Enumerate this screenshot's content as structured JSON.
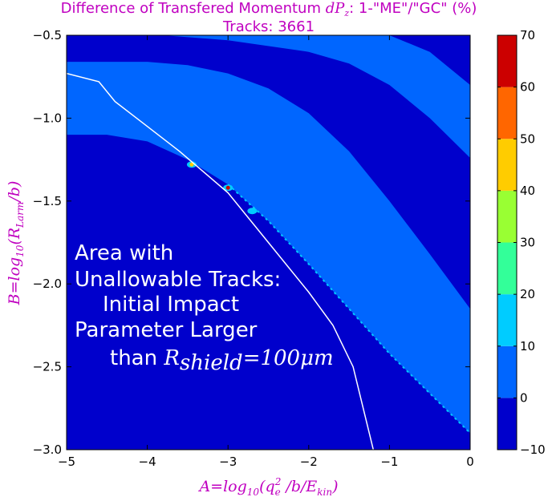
{
  "chart_data": {
    "type": "heatmap",
    "title": "Difference of Transfered Momentum $dP_z$: 1-\"ME\"/\"GC\" (%)",
    "title_line1_text": "Difference of Transfered Momentum ",
    "title_line1_math": "dP",
    "title_line1_math_sub": "z",
    "title_line1_tail": ": 1-\"ME\"/\"GC\" (%)",
    "subtitle": "Tracks: 3661",
    "xlabel": "A=log10(qe^2/b/Ekin)",
    "xlabel_parts": {
      "main": "A=log",
      "sub1": "10",
      "open": "(q",
      "sub2": "e",
      "sup2": "2",
      "rest": " /b/E",
      "sub3": "kin",
      "close": ")"
    },
    "ylabel": "B=log10(RLarm/b)",
    "ylabel_parts": {
      "main": "B=log",
      "sub1": "10",
      "open": "(R",
      "sub2": "Larm",
      "close": "/b)"
    },
    "xlim": [
      -5,
      0
    ],
    "ylim": [
      -3,
      -0.5
    ],
    "x_ticks": [
      -5,
      -4,
      -3,
      -2,
      -1,
      0
    ],
    "x_tick_labels": [
      "−5",
      "−4",
      "−3",
      "−2",
      "−1",
      "0"
    ],
    "y_ticks": [
      -0.5,
      -1.0,
      -1.5,
      -2.0,
      -2.5,
      -3.0
    ],
    "y_tick_labels": [
      "−0.5",
      "−1.0",
      "−1.5",
      "−2.0",
      "−2.5",
      "−3.0"
    ],
    "colorbar": {
      "levels": [
        -10,
        0,
        10,
        20,
        30,
        40,
        50,
        60,
        70
      ],
      "labels": [
        "−10",
        "0",
        "10",
        "20",
        "30",
        "40",
        "50",
        "60",
        "70"
      ],
      "colors": [
        "#0000cc",
        "#0066ff",
        "#00ccff",
        "#33ff99",
        "#99ff33",
        "#ffcc00",
        "#ff6600",
        "#cc0000"
      ]
    },
    "regions": {
      "background_level": "#0000cc",
      "upper_band": {
        "color": "#0066ff",
        "lower_edge": [
          [
            -5,
            -1.1
          ],
          [
            -4.5,
            -1.1
          ],
          [
            -4.0,
            -1.14
          ],
          [
            -3.5,
            -1.25
          ],
          [
            -3.0,
            -1.4
          ],
          [
            -2.5,
            -1.62
          ],
          [
            -2.0,
            -1.88
          ],
          [
            -1.5,
            -2.15
          ],
          [
            -1.0,
            -2.42
          ],
          [
            -0.5,
            -2.66
          ],
          [
            0,
            -2.9
          ]
        ],
        "upper_edge": [
          [
            -5,
            -0.66
          ],
          [
            -4,
            -0.66
          ],
          [
            -3.5,
            -0.68
          ],
          [
            -3.0,
            -0.73
          ],
          [
            -2.5,
            -0.82
          ],
          [
            -2.0,
            -0.97
          ],
          [
            -1.5,
            -1.2
          ],
          [
            -1.0,
            -1.5
          ],
          [
            -0.5,
            -1.82
          ],
          [
            0,
            -2.15
          ]
        ]
      },
      "top_band": {
        "color": "#0066ff",
        "lower_edge": [
          [
            -3.8,
            -0.5
          ],
          [
            -3.0,
            -0.53
          ],
          [
            -2.0,
            -0.6
          ],
          [
            -1.5,
            -0.67
          ],
          [
            -1.0,
            -0.8
          ],
          [
            -0.5,
            -1.0
          ],
          [
            0,
            -1.24
          ]
        ],
        "upper_edge": [
          [
            -1.0,
            -0.5
          ],
          [
            -0.5,
            -0.6
          ],
          [
            0,
            -0.8
          ]
        ]
      }
    },
    "hot_spots": [
      {
        "x": -3.0,
        "y": -1.42,
        "value": 65
      },
      {
        "x": -3.45,
        "y": -1.28,
        "value": 45
      },
      {
        "x": -2.7,
        "y": -1.56,
        "value": 15
      }
    ],
    "boundary_curve": [
      [
        -5,
        -0.73
      ],
      [
        -4.6,
        -0.78
      ],
      [
        -4.4,
        -0.9
      ],
      [
        -4.0,
        -1.05
      ],
      [
        -3.6,
        -1.2
      ],
      [
        -3.0,
        -1.45
      ],
      [
        -2.5,
        -1.75
      ],
      [
        -2.0,
        -2.05
      ],
      [
        -1.7,
        -2.25
      ],
      [
        -1.45,
        -2.5
      ],
      [
        -1.3,
        -2.8
      ],
      [
        -1.2,
        -3.0
      ]
    ]
  },
  "annotation": {
    "lines": [
      "Area with",
      "Unallowable Tracks:",
      "Initial Impact",
      "Parameter Larger"
    ],
    "last_line_text": "than ",
    "last_line_math": "R",
    "last_line_math_sub": "shield",
    "last_line_math_rest": "=100μm"
  }
}
